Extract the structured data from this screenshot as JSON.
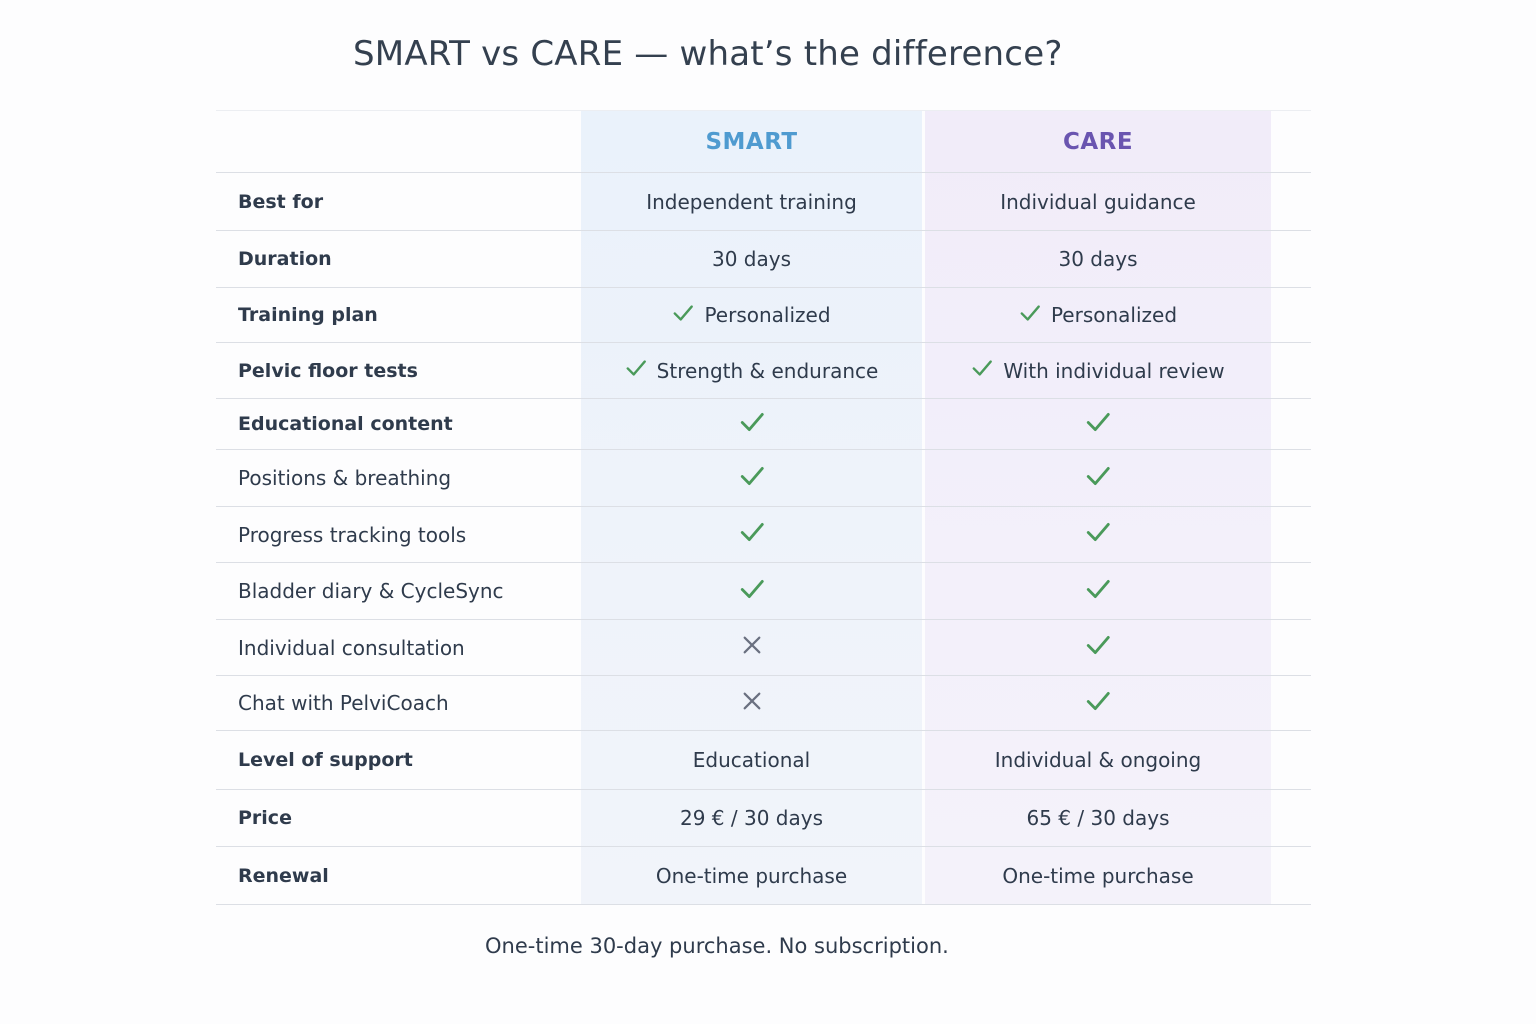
{
  "title": "SMART vs CARE — what’s the difference?",
  "columns": {
    "smart": "SMART",
    "care": "CARE"
  },
  "colors": {
    "smart_accent": "#4f9bd0",
    "care_accent": "#6a55b0",
    "check": "#4a9a5a",
    "cross": "#6a7080"
  },
  "rows": [
    {
      "label": "Best for",
      "smart": {
        "type": "text",
        "text": "Independent training"
      },
      "care": {
        "type": "text",
        "text": "Individual guidance"
      }
    },
    {
      "label": "Duration",
      "smart": {
        "type": "text",
        "text": "30 days"
      },
      "care": {
        "type": "text",
        "text": "30 days"
      }
    },
    {
      "label": "Training plan",
      "smart": {
        "type": "check-text",
        "text": "Personalized"
      },
      "care": {
        "type": "check-text",
        "text": "Personalized"
      }
    },
    {
      "label": "Pelvic floor tests",
      "smart": {
        "type": "check-text",
        "text": "Strength & endurance"
      },
      "care": {
        "type": "check-text",
        "text": "With individual review"
      }
    },
    {
      "label": "Educational content",
      "smart": {
        "type": "check"
      },
      "care": {
        "type": "check"
      }
    },
    {
      "label": "Positions & breathing",
      "smart": {
        "type": "check"
      },
      "care": {
        "type": "check"
      }
    },
    {
      "label": "Progress tracking tools",
      "smart": {
        "type": "check"
      },
      "care": {
        "type": "check"
      }
    },
    {
      "label": "Bladder diary & CycleSync",
      "smart": {
        "type": "check"
      },
      "care": {
        "type": "check"
      }
    },
    {
      "label": "Individual consultation",
      "smart": {
        "type": "cross"
      },
      "care": {
        "type": "check"
      }
    },
    {
      "label": "Chat with PelviCoach",
      "smart": {
        "type": "cross"
      },
      "care": {
        "type": "check"
      }
    },
    {
      "label": "Level of support",
      "smart": {
        "type": "text",
        "text": "Educational"
      },
      "care": {
        "type": "text",
        "text": "Individual & ongoing"
      }
    },
    {
      "label": "Price",
      "smart": {
        "type": "text",
        "text": "29 € / 30 days"
      },
      "care": {
        "type": "text",
        "text": "65 € / 30 days"
      }
    },
    {
      "label": "Renewal",
      "smart": {
        "type": "text",
        "text": "One-time purchase"
      },
      "care": {
        "type": "text",
        "text": "One-time purchase"
      }
    }
  ],
  "footnote": "One-time 30-day purchase. No subscription."
}
